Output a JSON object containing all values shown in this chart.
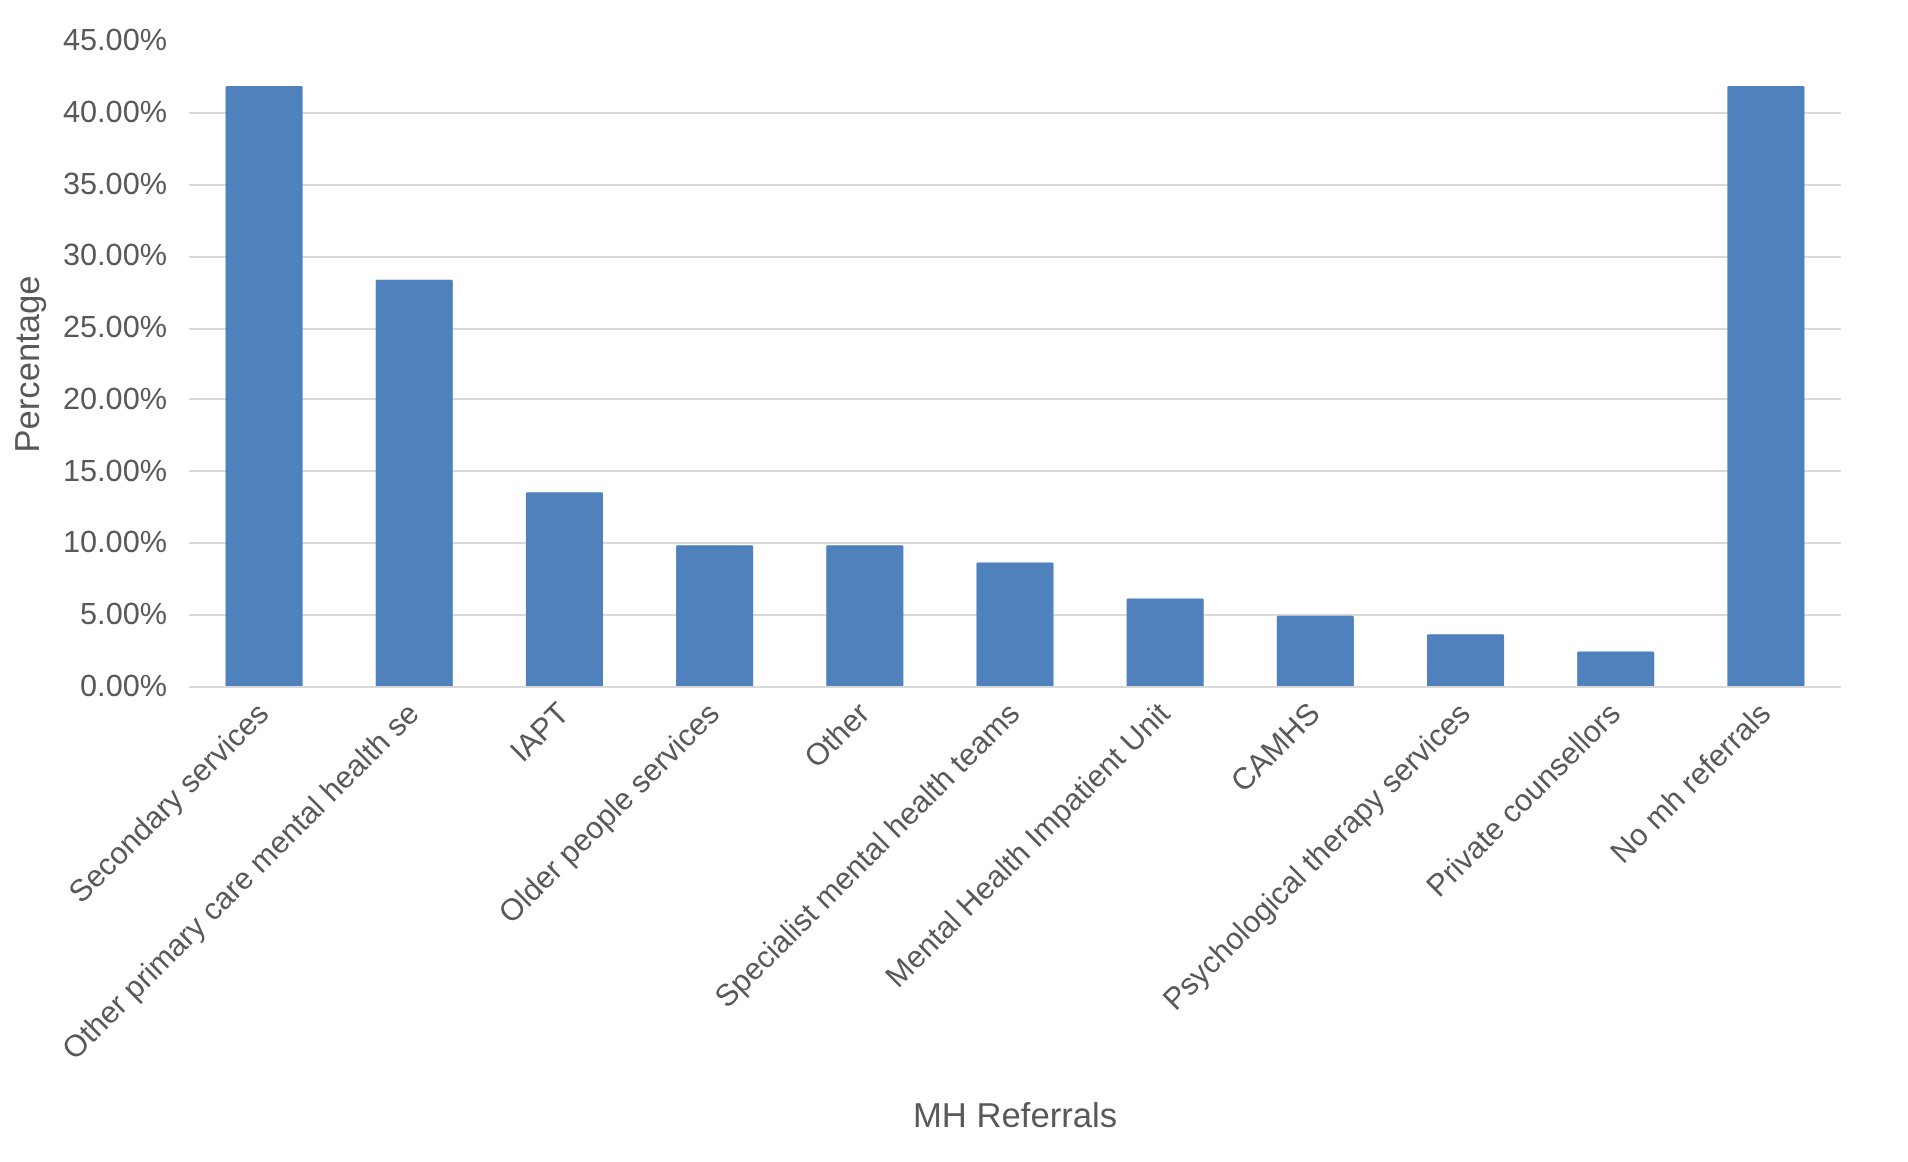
{
  "chart_data": {
    "type": "bar",
    "xlabel": "MH Referrals",
    "ylabel": "Percentage",
    "categories": [
      "Secondary services",
      "Other primary care mental health se",
      "IAPT",
      "Older people services",
      "Other",
      "Specialist mental health teams",
      "Mental Health Impatient Unit",
      "CAMHS",
      "Psychological therapy services",
      "Private counsellors",
      "No mh referrals"
    ],
    "values": [
      41.8,
      28.3,
      13.5,
      9.8,
      9.8,
      8.6,
      6.1,
      4.9,
      3.6,
      2.4,
      41.8
    ],
    "color": "#4f81bd",
    "ylim": [
      0,
      45
    ],
    "yticks": [
      {
        "value": 0,
        "label": "0.00%"
      },
      {
        "value": 5,
        "label": "5.00%"
      },
      {
        "value": 10,
        "label": "10.00%"
      },
      {
        "value": 15,
        "label": "15.00%"
      },
      {
        "value": 20,
        "label": "20.00%"
      },
      {
        "value": 25,
        "label": "25.00%"
      },
      {
        "value": 30,
        "label": "30.00%"
      },
      {
        "value": 35,
        "label": "35.00%"
      },
      {
        "value": 40,
        "label": "40.00%"
      },
      {
        "value": 45,
        "label": "45.00%"
      }
    ],
    "grid": "y"
  }
}
